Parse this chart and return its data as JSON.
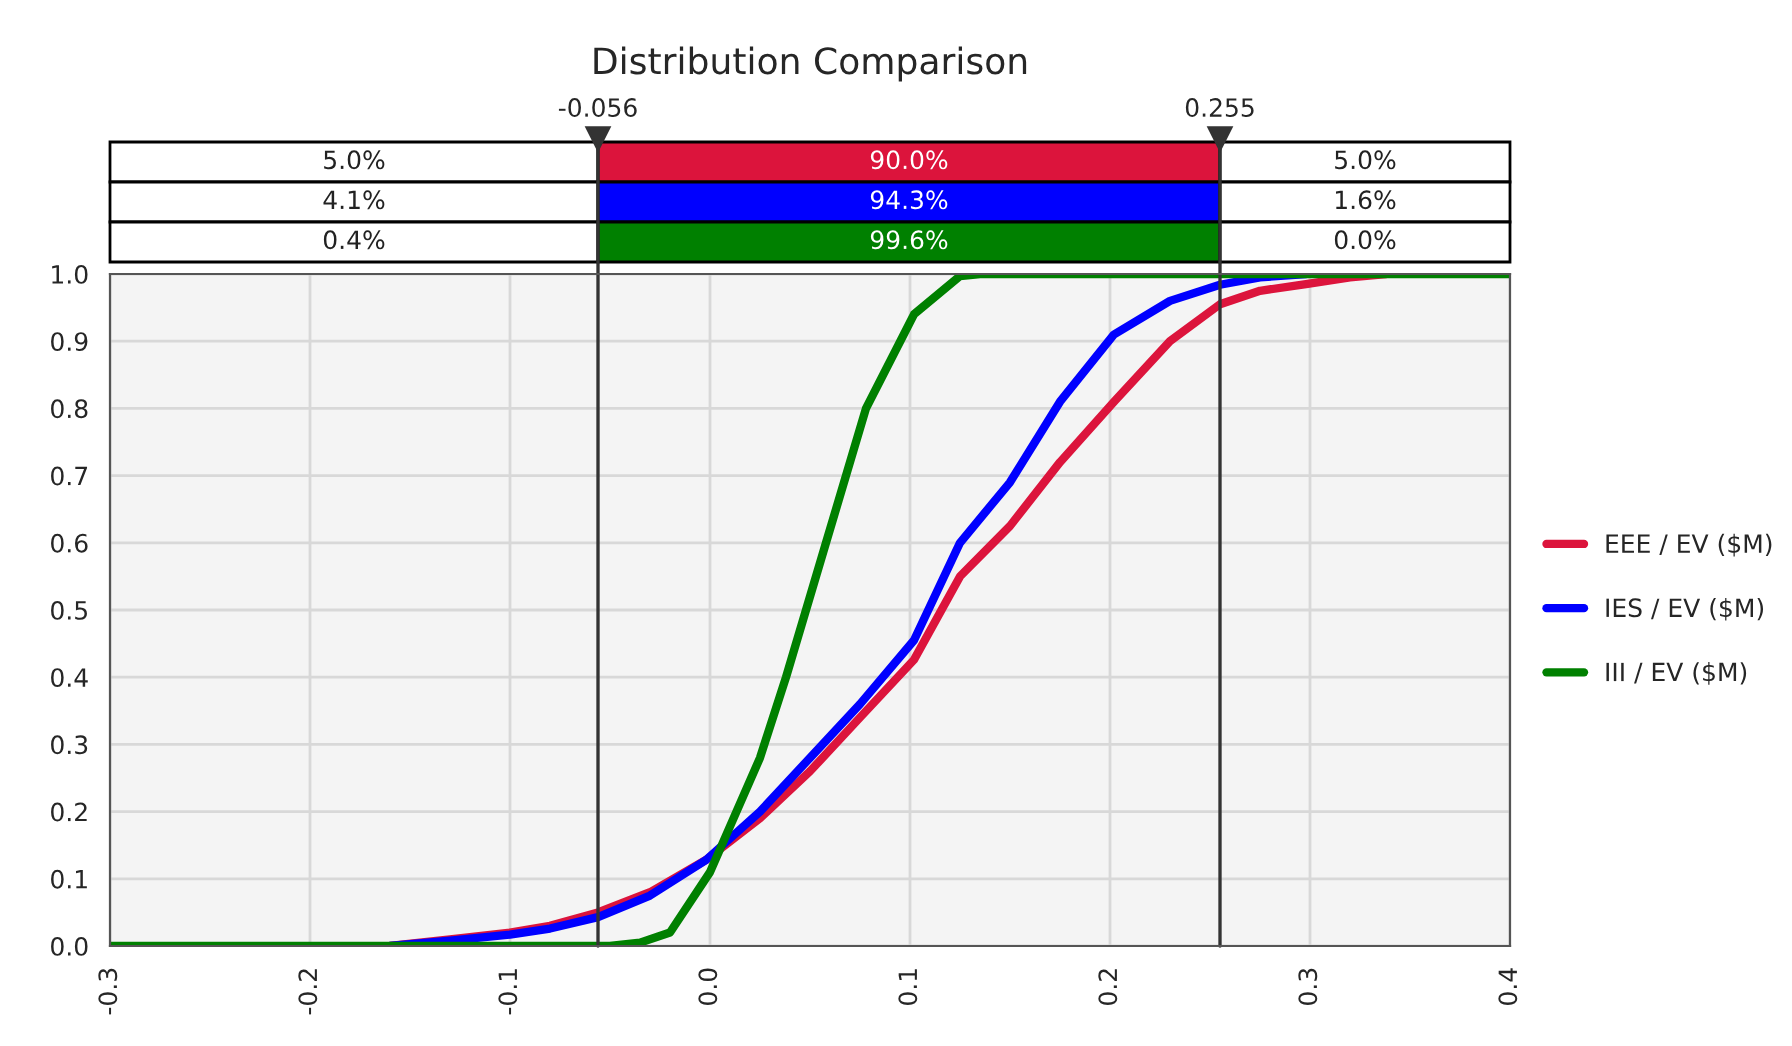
{
  "chart_data": {
    "type": "line",
    "title": "Distribution Comparison",
    "series": [
      {
        "name": "EEE / EV ($M)",
        "color": "#dc143c",
        "x": [
          -0.16,
          -0.13,
          -0.1,
          -0.08,
          -0.056,
          -0.03,
          -0.002,
          0.025,
          0.05,
          0.075,
          0.102,
          0.125,
          0.15,
          0.175,
          0.202,
          0.23,
          0.255,
          0.275,
          0.298,
          0.32,
          0.338
        ],
        "values": [
          0.0,
          0.01,
          0.02,
          0.03,
          0.05,
          0.08,
          0.128,
          0.19,
          0.26,
          0.34,
          0.426,
          0.55,
          0.625,
          0.72,
          0.81,
          0.9,
          0.955,
          0.975,
          0.985,
          0.995,
          1.0
        ]
      },
      {
        "name": "IES / EV ($M)",
        "color": "#0000ff",
        "x": [
          -0.16,
          -0.13,
          -0.1,
          -0.08,
          -0.056,
          -0.03,
          -0.002,
          0.025,
          0.05,
          0.075,
          0.102,
          0.125,
          0.15,
          0.175,
          0.202,
          0.23,
          0.255,
          0.275,
          0.298
        ],
        "values": [
          0.0,
          0.008,
          0.017,
          0.026,
          0.043,
          0.075,
          0.128,
          0.2,
          0.28,
          0.36,
          0.455,
          0.6,
          0.69,
          0.81,
          0.91,
          0.96,
          0.984,
          0.995,
          1.0
        ]
      },
      {
        "name": "III / EV ($M)",
        "color": "#008000",
        "x": [
          -0.3,
          -0.05,
          -0.035,
          -0.02,
          0.0,
          0.025,
          0.038,
          0.058,
          0.078,
          0.102,
          0.125,
          0.135,
          0.4
        ],
        "values": [
          0.0,
          0.0,
          0.005,
          0.02,
          0.11,
          0.28,
          0.4,
          0.6,
          0.8,
          0.94,
          0.997,
          1.0,
          1.0
        ]
      }
    ],
    "xlim": [
      -0.3,
      0.4
    ],
    "xticks": [
      -0.3,
      -0.2,
      -0.1,
      {
        "value": 0.0,
        "label": "0.0"
      },
      0.1,
      0.2,
      0.3,
      0.4
    ],
    "ylim": [
      0.0,
      1.0
    ],
    "yticks": [
      {
        "value": 0.0,
        "label": "0.0"
      },
      0.1,
      0.2,
      0.3,
      0.4,
      0.5,
      0.6,
      0.7,
      0.8,
      0.9,
      {
        "value": 1.0,
        "label": "1.0"
      }
    ],
    "ref_lines": [
      {
        "axis": "x",
        "value": -0.056,
        "label": "-0.056",
        "color": "#333333"
      },
      {
        "axis": "x",
        "value": 0.255,
        "label": "0.255",
        "color": "#333333"
      }
    ],
    "annotations": [
      "5.0%",
      "90.0%",
      "5.0%",
      "4.1%",
      "94.3%",
      "1.6%",
      "0.4%",
      "99.6%",
      "0.0%"
    ],
    "grid": true,
    "legend": "right",
    "line_style": "solid",
    "marker": "none"
  }
}
